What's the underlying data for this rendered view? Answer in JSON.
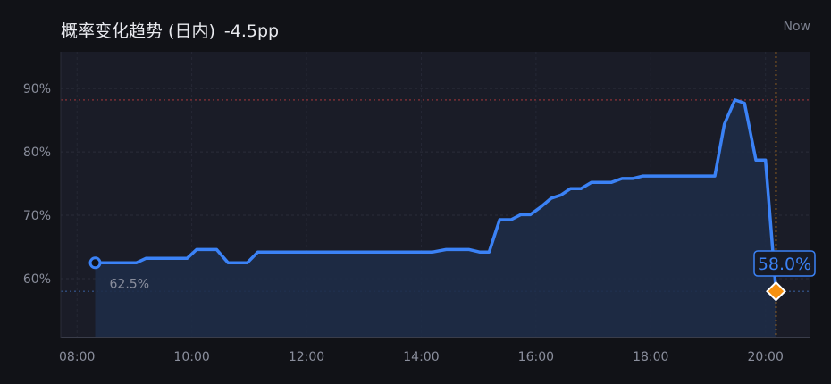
{
  "header": {
    "title": "概率变化趋势 (日内)",
    "delta": "-4.5pp",
    "now_label": "Now"
  },
  "colors": {
    "line": "#3b82f6",
    "fill": "#1e2c47",
    "plot_bg": "#1a1c27",
    "max_line": "#7a2f35",
    "now_line": "#e8901a",
    "marker": "#f5900f"
  },
  "chart_data": {
    "type": "area",
    "title": "概率变化趋势 (日内)",
    "xlabel": "",
    "ylabel": "",
    "x_ticks": [
      "08:00",
      "10:00",
      "12:00",
      "14:00",
      "16:00",
      "18:00",
      "20:00"
    ],
    "y_ticks": [
      "60%",
      "70%",
      "80%",
      "90%"
    ],
    "xlim": [
      "07:43",
      "20:47"
    ],
    "ylim": [
      50.7,
      95.8
    ],
    "grid": true,
    "x": [
      "08:19",
      "09:02",
      "09:12",
      "09:55",
      "10:05",
      "10:26",
      "10:38",
      "10:58",
      "11:09",
      "14:12",
      "14:26",
      "14:50",
      "15:01",
      "15:11",
      "15:22",
      "15:34",
      "15:44",
      "15:54",
      "16:05",
      "16:16",
      "16:26",
      "16:36",
      "16:47",
      "16:58",
      "17:19",
      "17:30",
      "17:41",
      "17:52",
      "19:07",
      "19:17",
      "19:28",
      "19:38",
      "19:50",
      "20:00",
      "20:11"
    ],
    "values": [
      62.5,
      62.5,
      63.2,
      63.2,
      64.6,
      64.6,
      62.5,
      62.5,
      64.2,
      64.2,
      64.6,
      64.6,
      64.2,
      64.2,
      69.3,
      69.3,
      70.1,
      70.1,
      71.3,
      72.7,
      73.2,
      74.2,
      74.2,
      75.2,
      75.2,
      75.8,
      75.8,
      76.2,
      76.2,
      84.4,
      88.2,
      87.7,
      78.7,
      78.7,
      58.0
    ],
    "start_label": "62.5%",
    "current_label": "58.0%",
    "max_value": 88.2,
    "current_value": 58.0,
    "now_time": "20:11"
  }
}
